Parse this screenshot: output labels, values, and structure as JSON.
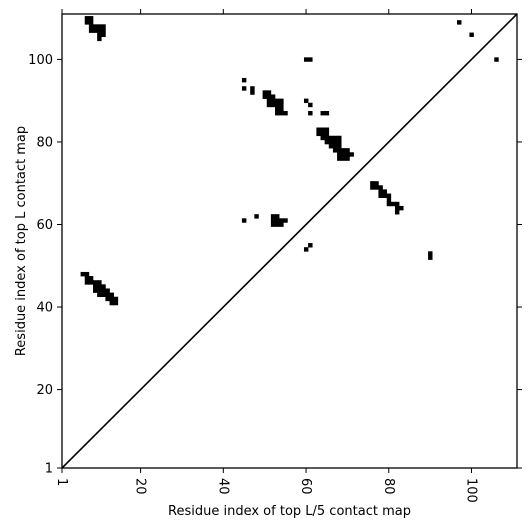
{
  "chart_data": {
    "type": "heatmap",
    "title": "",
    "xlabel": "Residue index of top L/5 contact map",
    "ylabel": "Residue index of top L contact map",
    "xlim": [
      1,
      111
    ],
    "ylim": [
      1,
      111
    ],
    "x_ticks": [
      1,
      20,
      40,
      60,
      80,
      100
    ],
    "y_ticks": [
      1,
      20,
      40,
      60,
      80,
      100
    ],
    "x_tick_labels": [
      "1",
      "20",
      "40",
      "60",
      "80",
      "100"
    ],
    "y_tick_labels": [
      "1",
      "20",
      "40",
      "60",
      "80",
      "100"
    ],
    "x_tick_rotation": -90,
    "diagonal_line": true,
    "grid": false,
    "contact_color": "#000000",
    "contacts": [
      [
        7,
        110
      ],
      [
        8,
        110
      ],
      [
        7,
        109
      ],
      [
        8,
        109
      ],
      [
        8,
        108
      ],
      [
        9,
        108
      ],
      [
        10,
        108
      ],
      [
        11,
        108
      ],
      [
        8,
        107
      ],
      [
        9,
        107
      ],
      [
        10,
        107
      ],
      [
        11,
        107
      ],
      [
        10,
        106
      ],
      [
        11,
        106
      ],
      [
        10,
        105
      ],
      [
        97,
        109
      ],
      [
        100,
        106
      ],
      [
        106,
        100
      ],
      [
        60,
        100
      ],
      [
        61,
        100
      ],
      [
        45,
        95
      ],
      [
        45,
        93
      ],
      [
        47,
        93
      ],
      [
        47,
        92
      ],
      [
        50,
        92
      ],
      [
        51,
        92
      ],
      [
        50,
        91
      ],
      [
        51,
        91
      ],
      [
        52,
        91
      ],
      [
        51,
        90
      ],
      [
        52,
        90
      ],
      [
        53,
        90
      ],
      [
        54,
        90
      ],
      [
        51,
        89
      ],
      [
        52,
        89
      ],
      [
        53,
        89
      ],
      [
        54,
        89
      ],
      [
        53,
        88
      ],
      [
        54,
        88
      ],
      [
        53,
        87
      ],
      [
        54,
        87
      ],
      [
        55,
        87
      ],
      [
        60,
        90
      ],
      [
        61,
        89
      ],
      [
        61,
        87
      ],
      [
        64,
        87
      ],
      [
        65,
        87
      ],
      [
        63,
        83
      ],
      [
        64,
        83
      ],
      [
        65,
        83
      ],
      [
        63,
        82
      ],
      [
        64,
        82
      ],
      [
        65,
        82
      ],
      [
        64,
        81
      ],
      [
        65,
        81
      ],
      [
        66,
        81
      ],
      [
        67,
        81
      ],
      [
        68,
        81
      ],
      [
        65,
        80
      ],
      [
        66,
        80
      ],
      [
        67,
        80
      ],
      [
        68,
        80
      ],
      [
        66,
        79
      ],
      [
        67,
        79
      ],
      [
        68,
        79
      ],
      [
        67,
        78
      ],
      [
        68,
        78
      ],
      [
        69,
        78
      ],
      [
        70,
        78
      ],
      [
        68,
        77
      ],
      [
        69,
        77
      ],
      [
        70,
        77
      ],
      [
        71,
        77
      ],
      [
        68,
        76
      ],
      [
        69,
        76
      ],
      [
        70,
        76
      ],
      [
        76,
        70
      ],
      [
        77,
        70
      ],
      [
        76,
        69
      ],
      [
        77,
        69
      ],
      [
        78,
        69
      ],
      [
        78,
        68
      ],
      [
        79,
        68
      ],
      [
        78,
        67
      ],
      [
        79,
        67
      ],
      [
        80,
        67
      ],
      [
        80,
        66
      ],
      [
        80,
        65
      ],
      [
        81,
        65
      ],
      [
        82,
        65
      ],
      [
        82,
        64
      ],
      [
        83,
        64
      ],
      [
        82,
        63
      ],
      [
        52,
        62
      ],
      [
        53,
        62
      ],
      [
        48,
        62
      ],
      [
        52,
        61
      ],
      [
        53,
        61
      ],
      [
        54,
        61
      ],
      [
        55,
        61
      ],
      [
        45,
        61
      ],
      [
        52,
        60
      ],
      [
        53,
        60
      ],
      [
        54,
        60
      ],
      [
        61,
        55
      ],
      [
        60,
        54
      ],
      [
        90,
        53
      ],
      [
        90,
        52
      ],
      [
        6,
        48
      ],
      [
        7,
        48
      ],
      [
        7,
        47
      ],
      [
        8,
        47
      ],
      [
        7,
        46
      ],
      [
        8,
        46
      ],
      [
        9,
        46
      ],
      [
        10,
        46
      ],
      [
        9,
        45
      ],
      [
        10,
        45
      ],
      [
        11,
        45
      ],
      [
        9,
        44
      ],
      [
        10,
        44
      ],
      [
        11,
        44
      ],
      [
        12,
        44
      ],
      [
        10,
        43
      ],
      [
        11,
        43
      ],
      [
        12,
        43
      ],
      [
        13,
        43
      ],
      [
        12,
        42
      ],
      [
        13,
        42
      ],
      [
        14,
        42
      ],
      [
        13,
        41
      ],
      [
        14,
        41
      ]
    ]
  }
}
